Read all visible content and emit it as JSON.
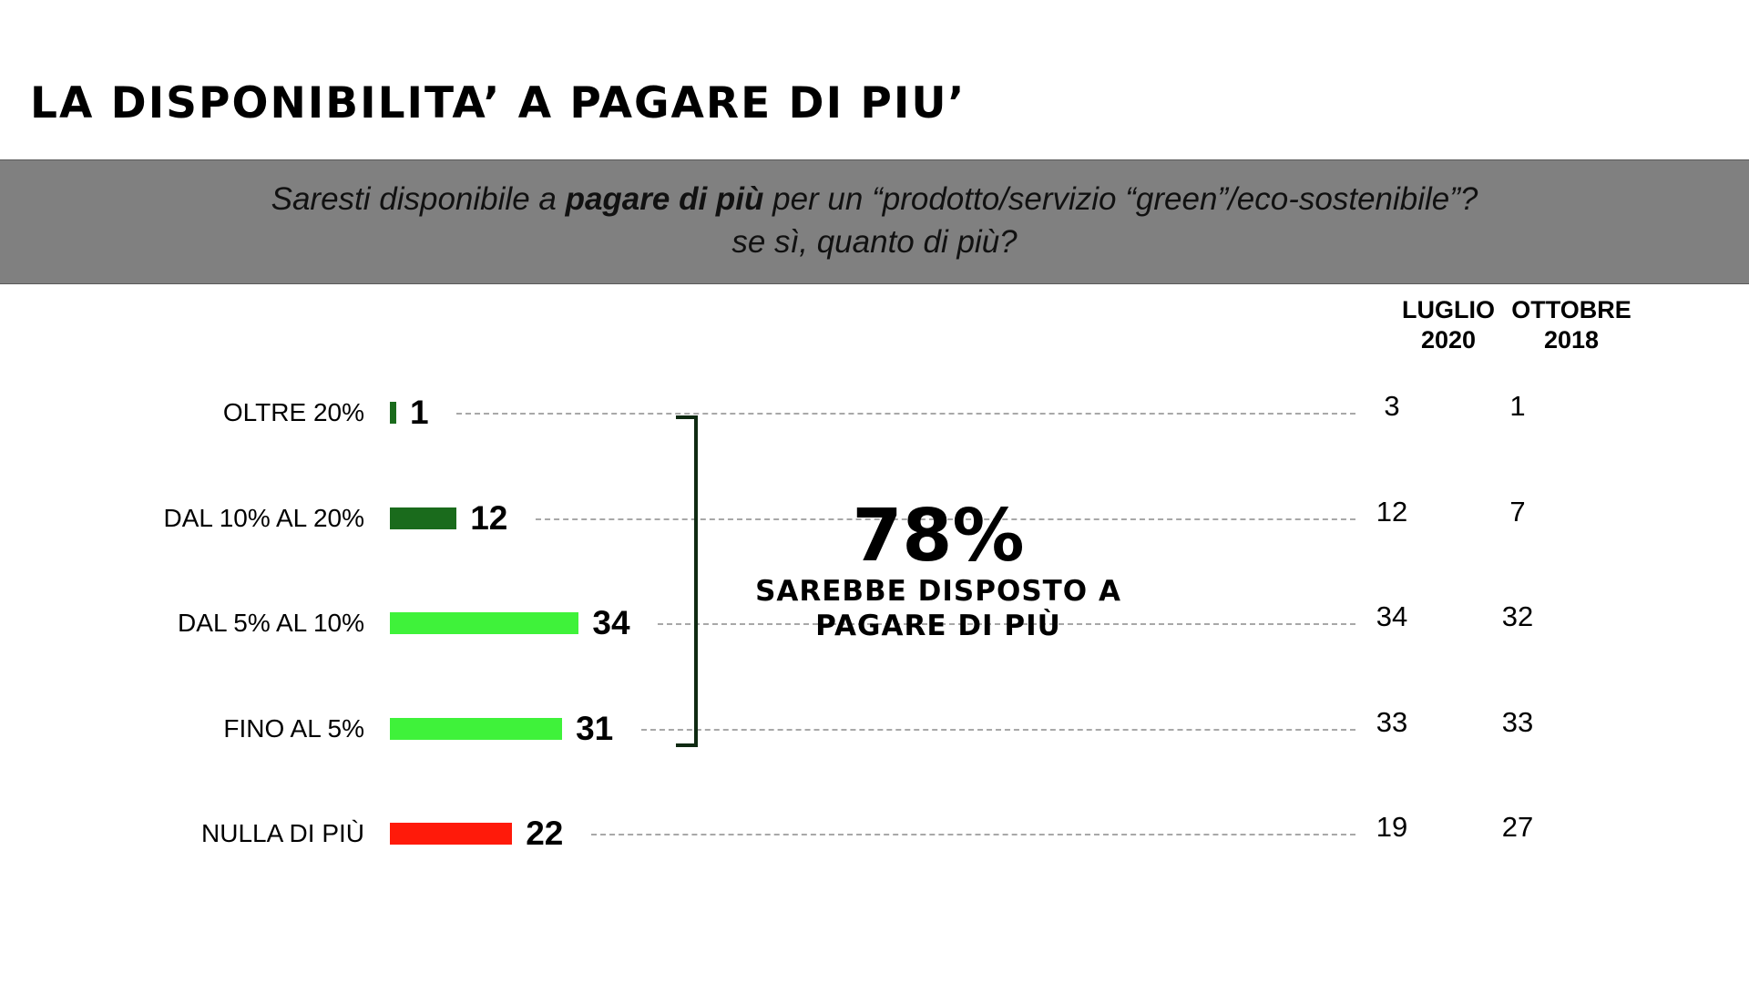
{
  "title": "LA DISPONIBILITA’ A PAGARE DI PIU’",
  "question": {
    "line1_pre": "Saresti disponibile a ",
    "line1_bold": "pagare di più",
    "line1_post": " per un “prodotto/servizio “green”/eco-sostenibile”?",
    "line2": "se sì, quanto di più?"
  },
  "comparison_headers": [
    {
      "line1": "LUGLIO",
      "line2": "2020"
    },
    {
      "line1": "OTTOBRE",
      "line2": "2018"
    }
  ],
  "callout": {
    "value": "78%",
    "line1": "SAREBBE DISPOSTO A",
    "line2": "PAGARE DI PIÙ"
  },
  "colors": {
    "dark_green": "#1a6b1c",
    "light_green": "#3ff23a",
    "red": "#ff1a0a"
  },
  "chart_data": {
    "type": "bar",
    "orientation": "horizontal",
    "title": "LA DISPONIBILITA’ A PAGARE DI PIU’",
    "categories": [
      "OLTRE 20%",
      "DAL 10% AL 20%",
      "DAL 5% AL 10%",
      "FINO AL 5%",
      "NULLA DI PIÙ"
    ],
    "values": [
      1,
      12,
      34,
      31,
      22
    ],
    "value_labels": [
      "1",
      "12",
      "34",
      "31",
      "22"
    ],
    "bar_colors": [
      "#1a6b1c",
      "#1a6b1c",
      "#3ff23a",
      "#3ff23a",
      "#ff1a0a"
    ],
    "comparison_series": [
      {
        "name": "LUGLIO 2020",
        "values": [
          "3",
          "12",
          "34",
          "33",
          "19"
        ]
      },
      {
        "name": "OTTOBRE 2018",
        "values": [
          "1",
          "7",
          "32",
          "33",
          "27"
        ]
      }
    ],
    "grid": false
  }
}
